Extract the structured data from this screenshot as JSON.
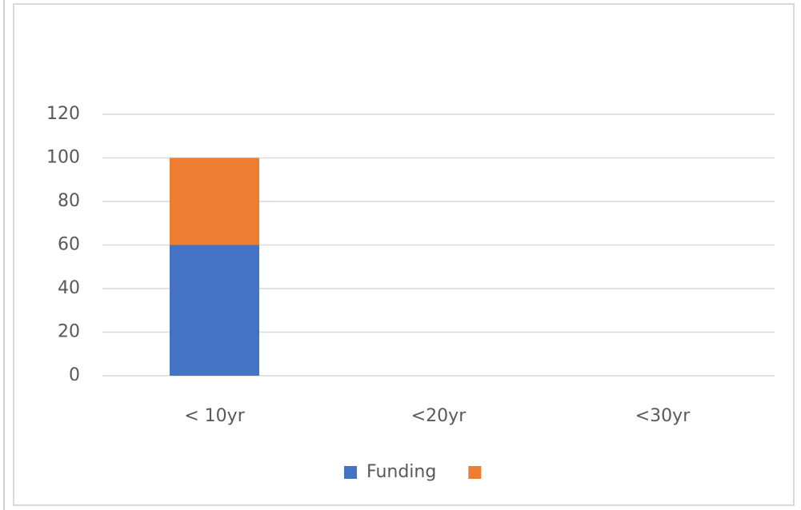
{
  "chart_data": {
    "type": "bar",
    "stacked": true,
    "categories": [
      "< 10yr",
      "<20yr",
      "<30yr"
    ],
    "series": [
      {
        "name": "Funding",
        "color": "#4472c4",
        "values": [
          60,
          null,
          null
        ]
      },
      {
        "color": "#ed7d31",
        "values": [
          40,
          null,
          null
        ]
      }
    ],
    "ylim": [
      0,
      120
    ],
    "yticks": [
      0,
      20,
      40,
      60,
      80,
      100,
      120
    ],
    "grid": true,
    "legend": "bottom"
  }
}
